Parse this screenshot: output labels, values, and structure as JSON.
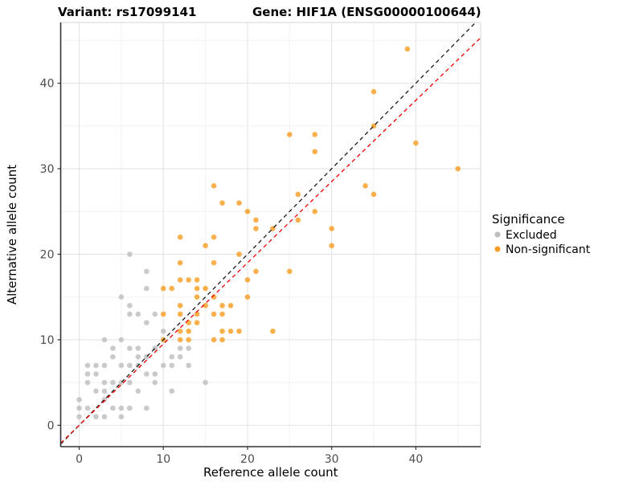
{
  "header": {
    "variant_title": "Variant: rs17099141",
    "gene_title": "Gene: HIF1A (ENSG00000100644)"
  },
  "chart_data": {
    "type": "scatter",
    "xlabel": "Reference allele count",
    "ylabel": "Alternative allele count",
    "xlim": [
      -2.2,
      47.7
    ],
    "ylim": [
      -2.5,
      47.1
    ],
    "x_ticks": [
      0,
      10,
      20,
      30,
      40
    ],
    "y_ticks": [
      0,
      10,
      20,
      30,
      40
    ],
    "minor_grid": [
      5,
      15,
      25,
      35,
      45
    ],
    "grid": true,
    "colors": {
      "excluded": "#BDBDBD",
      "non_significant": "#F89C20",
      "identity_line": "#1A1A1A",
      "ratio_line": "#EE0000",
      "major_grid": "#E4E4E4",
      "minor_grid": "#F2F2F2",
      "axis": "#333333"
    },
    "legend": {
      "title": "Significance",
      "position": "right",
      "entries": [
        {
          "label": "Excluded",
          "series": "Excluded"
        },
        {
          "label": "Non-significant",
          "series": "Non-significant"
        }
      ]
    },
    "reference_lines": [
      {
        "name": "identity",
        "slope": 1,
        "intercept": 0,
        "style": "dashed",
        "color_key": "identity_line"
      },
      {
        "name": "expected-ratio",
        "slope": 0.95,
        "intercept": 0,
        "style": "dashed",
        "color_key": "ratio_line"
      }
    ],
    "series": [
      {
        "name": "Excluded",
        "color_key": "excluded",
        "points": [
          [
            0,
            1
          ],
          [
            0,
            2
          ],
          [
            0,
            3
          ],
          [
            1,
            2
          ],
          [
            1,
            5
          ],
          [
            1,
            6
          ],
          [
            1,
            7
          ],
          [
            2,
            1
          ],
          [
            2,
            4
          ],
          [
            2,
            6
          ],
          [
            2,
            7
          ],
          [
            3,
            1
          ],
          [
            3,
            3
          ],
          [
            3,
            4
          ],
          [
            3,
            5
          ],
          [
            3,
            7
          ],
          [
            3,
            10
          ],
          [
            4,
            2
          ],
          [
            4,
            5
          ],
          [
            4,
            8
          ],
          [
            4,
            9
          ],
          [
            5,
            1
          ],
          [
            5,
            2
          ],
          [
            5,
            5
          ],
          [
            5,
            7
          ],
          [
            5,
            10
          ],
          [
            5,
            15
          ],
          [
            6,
            2
          ],
          [
            6,
            5
          ],
          [
            6,
            7
          ],
          [
            6,
            9
          ],
          [
            6,
            13
          ],
          [
            6,
            14
          ],
          [
            6,
            20
          ],
          [
            7,
            4
          ],
          [
            7,
            7
          ],
          [
            7,
            8
          ],
          [
            7,
            9
          ],
          [
            7,
            13
          ],
          [
            8,
            2
          ],
          [
            8,
            6
          ],
          [
            8,
            8
          ],
          [
            8,
            12
          ],
          [
            8,
            16
          ],
          [
            8,
            18
          ],
          [
            9,
            5
          ],
          [
            9,
            6
          ],
          [
            9,
            9
          ],
          [
            9,
            13
          ],
          [
            10,
            7
          ],
          [
            10,
            11
          ],
          [
            11,
            4
          ],
          [
            11,
            7
          ],
          [
            11,
            8
          ],
          [
            12,
            8
          ],
          [
            12,
            9
          ],
          [
            13,
            7
          ],
          [
            13,
            9
          ],
          [
            15,
            5
          ]
        ]
      },
      {
        "name": "Non-significant",
        "color_key": "non_significant",
        "points": [
          [
            10,
            10
          ],
          [
            10,
            13
          ],
          [
            10,
            16
          ],
          [
            11,
            16
          ],
          [
            12,
            10
          ],
          [
            12,
            11
          ],
          [
            12,
            13
          ],
          [
            12,
            14
          ],
          [
            12,
            17
          ],
          [
            12,
            19
          ],
          [
            12,
            22
          ],
          [
            13,
            10
          ],
          [
            13,
            11
          ],
          [
            13,
            12
          ],
          [
            13,
            17
          ],
          [
            14,
            12
          ],
          [
            14,
            13
          ],
          [
            14,
            15
          ],
          [
            14,
            16
          ],
          [
            14,
            17
          ],
          [
            15,
            14
          ],
          [
            15,
            16
          ],
          [
            15,
            21
          ],
          [
            16,
            10
          ],
          [
            16,
            13
          ],
          [
            16,
            15
          ],
          [
            16,
            19
          ],
          [
            16,
            22
          ],
          [
            16,
            28
          ],
          [
            17,
            10
          ],
          [
            17,
            11
          ],
          [
            17,
            13
          ],
          [
            17,
            14
          ],
          [
            17,
            26
          ],
          [
            18,
            11
          ],
          [
            18,
            14
          ],
          [
            19,
            11
          ],
          [
            19,
            20
          ],
          [
            19,
            26
          ],
          [
            20,
            15
          ],
          [
            20,
            17
          ],
          [
            20,
            25
          ],
          [
            21,
            18
          ],
          [
            21,
            23
          ],
          [
            21,
            24
          ],
          [
            23,
            11
          ],
          [
            23,
            23
          ],
          [
            25,
            18
          ],
          [
            25,
            34
          ],
          [
            26,
            24
          ],
          [
            26,
            27
          ],
          [
            28,
            25
          ],
          [
            28,
            32
          ],
          [
            28,
            34
          ],
          [
            30,
            21
          ],
          [
            30,
            23
          ],
          [
            34,
            28
          ],
          [
            35,
            27
          ],
          [
            35,
            35
          ],
          [
            35,
            39
          ],
          [
            39,
            44
          ],
          [
            40,
            33
          ],
          [
            45,
            30
          ]
        ]
      }
    ]
  }
}
